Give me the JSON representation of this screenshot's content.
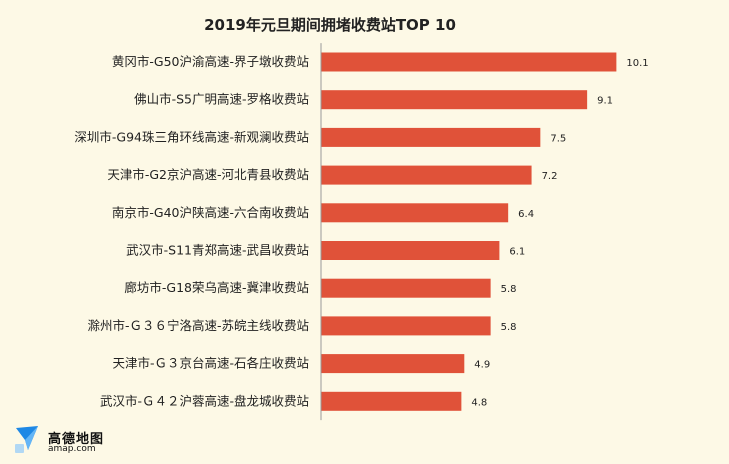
{
  "chart_data": {
    "type": "bar",
    "orientation": "horizontal",
    "title": "2019年元旦期间拥堵收费站TOP 10",
    "xlabel": "",
    "ylabel": "",
    "xlim": [
      0,
      10.6
    ],
    "grid": false,
    "bar_color": "#e05239",
    "categories": [
      "黄冈市-G50沪渝高速-界子墩收费站",
      "佛山市-S5广明高速-罗格收费站",
      "深圳市-G94珠三角环线高速-新观澜收费站",
      "天津市-G2京沪高速-河北青县收费站",
      "南京市-G40沪陕高速-六合南收费站",
      "武汉市-S11青郑高速-武昌收费站",
      "廊坊市-G18荣乌高速-冀津收费站",
      "滁州市-Ｇ３６宁洛高速-苏皖主线收费站",
      "天津市-Ｇ３京台高速-石各庄收费站",
      "武汉市-Ｇ４２沪蓉高速-盘龙城收费站"
    ],
    "values": [
      10.1,
      9.1,
      7.5,
      7.2,
      6.4,
      6.1,
      5.8,
      5.8,
      4.9,
      4.8
    ],
    "value_labels": [
      "10.1",
      "9.1",
      "7.5",
      "7.2",
      "6.4",
      "6.1",
      "5.8",
      "5.8",
      "4.9",
      "4.8"
    ]
  },
  "logo": {
    "name": "高德地图",
    "url": "amap.com",
    "icon": "amap-logo-icon",
    "icon_color": "#1e88e5"
  }
}
